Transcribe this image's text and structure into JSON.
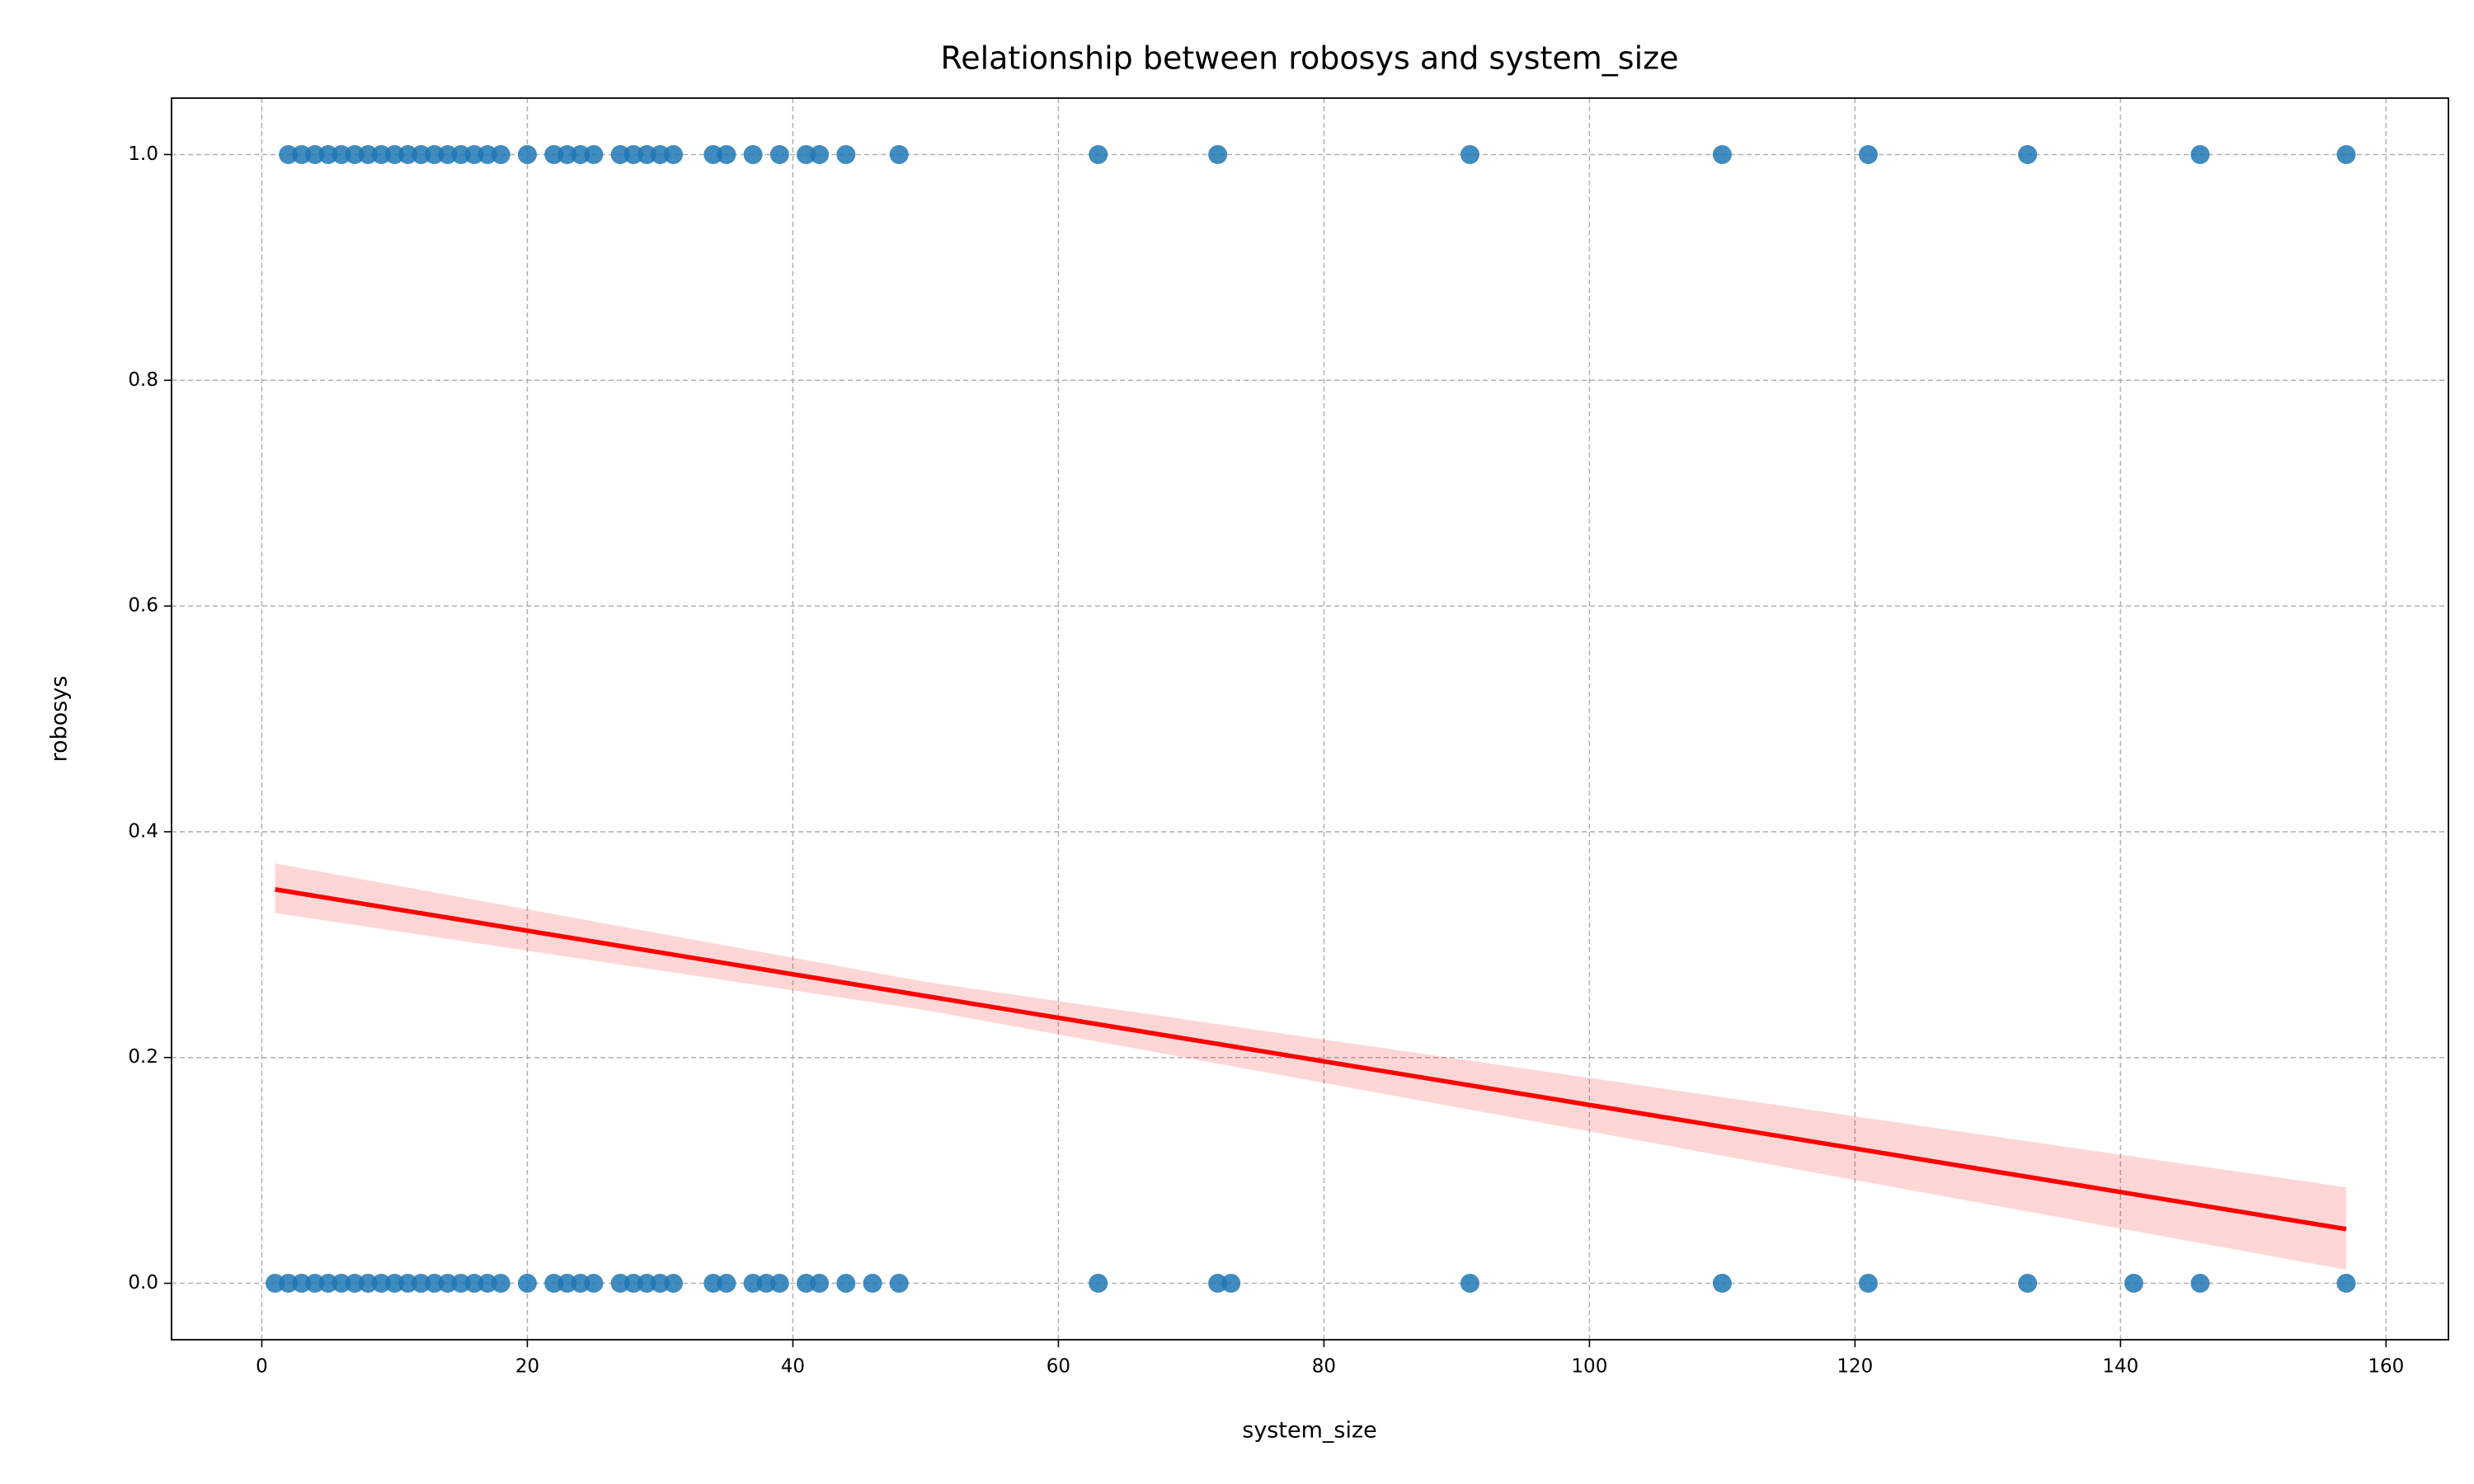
{
  "chart_data": {
    "type": "scatter",
    "title": "Relationship between robosys and system_size",
    "x_label": "system_size",
    "y_label": "robosys",
    "series": [
      {
        "color": "#1f77b4",
        "alpha": 0.85,
        "x": [
          2,
          3,
          4,
          5,
          6,
          7,
          8,
          9,
          10,
          11,
          12,
          13,
          14,
          15,
          16,
          17,
          18,
          20,
          22,
          23,
          24,
          25,
          27,
          28,
          29,
          30,
          31,
          34,
          35,
          37,
          39,
          41,
          42,
          44,
          48,
          63,
          72,
          91,
          110,
          121,
          133,
          146,
          157,
          1,
          2,
          3,
          4,
          5,
          6,
          7,
          8,
          9,
          10,
          11,
          12,
          13,
          14,
          15,
          16,
          17,
          18,
          20,
          22,
          23,
          24,
          25,
          27,
          28,
          29,
          30,
          31,
          34,
          35,
          37,
          38,
          39,
          41,
          42,
          44,
          46,
          48,
          63,
          72,
          73,
          91,
          110,
          121,
          133,
          141,
          146,
          157
        ],
        "values": [
          1,
          1,
          1,
          1,
          1,
          1,
          1,
          1,
          1,
          1,
          1,
          1,
          1,
          1,
          1,
          1,
          1,
          1,
          1,
          1,
          1,
          1,
          1,
          1,
          1,
          1,
          1,
          1,
          1,
          1,
          1,
          1,
          1,
          1,
          1,
          1,
          1,
          1,
          1,
          1,
          1,
          1,
          1,
          0,
          0,
          0,
          0,
          0,
          0,
          0,
          0,
          0,
          0,
          0,
          0,
          0,
          0,
          0,
          0,
          0,
          0,
          0,
          0,
          0,
          0,
          0,
          0,
          0,
          0,
          0,
          0,
          0,
          0,
          0,
          0,
          0,
          0,
          0,
          0,
          0,
          0,
          0,
          0,
          0,
          0,
          0,
          0,
          0,
          0,
          0,
          0
        ]
      }
    ],
    "regression": {
      "color": "#ff0000",
      "x": [
        1,
        50,
        157
      ],
      "values": [
        0.349,
        0.2545,
        0.048
      ],
      "ci_lower": [
        0.328,
        0.242,
        0.012
      ],
      "ci_upper": [
        0.372,
        0.267,
        0.085
      ]
    },
    "xlim": [
      -6.8,
      164.7
    ],
    "ylim": [
      -0.05,
      1.05
    ],
    "xticks": [
      0,
      20,
      40,
      60,
      80,
      100,
      120,
      140,
      160
    ],
    "yticks": [
      {
        "value": 0,
        "label": "0.0"
      },
      0.2,
      0.4,
      0.6,
      0.8,
      {
        "value": 1,
        "label": "1.0"
      }
    ],
    "grid": true
  }
}
